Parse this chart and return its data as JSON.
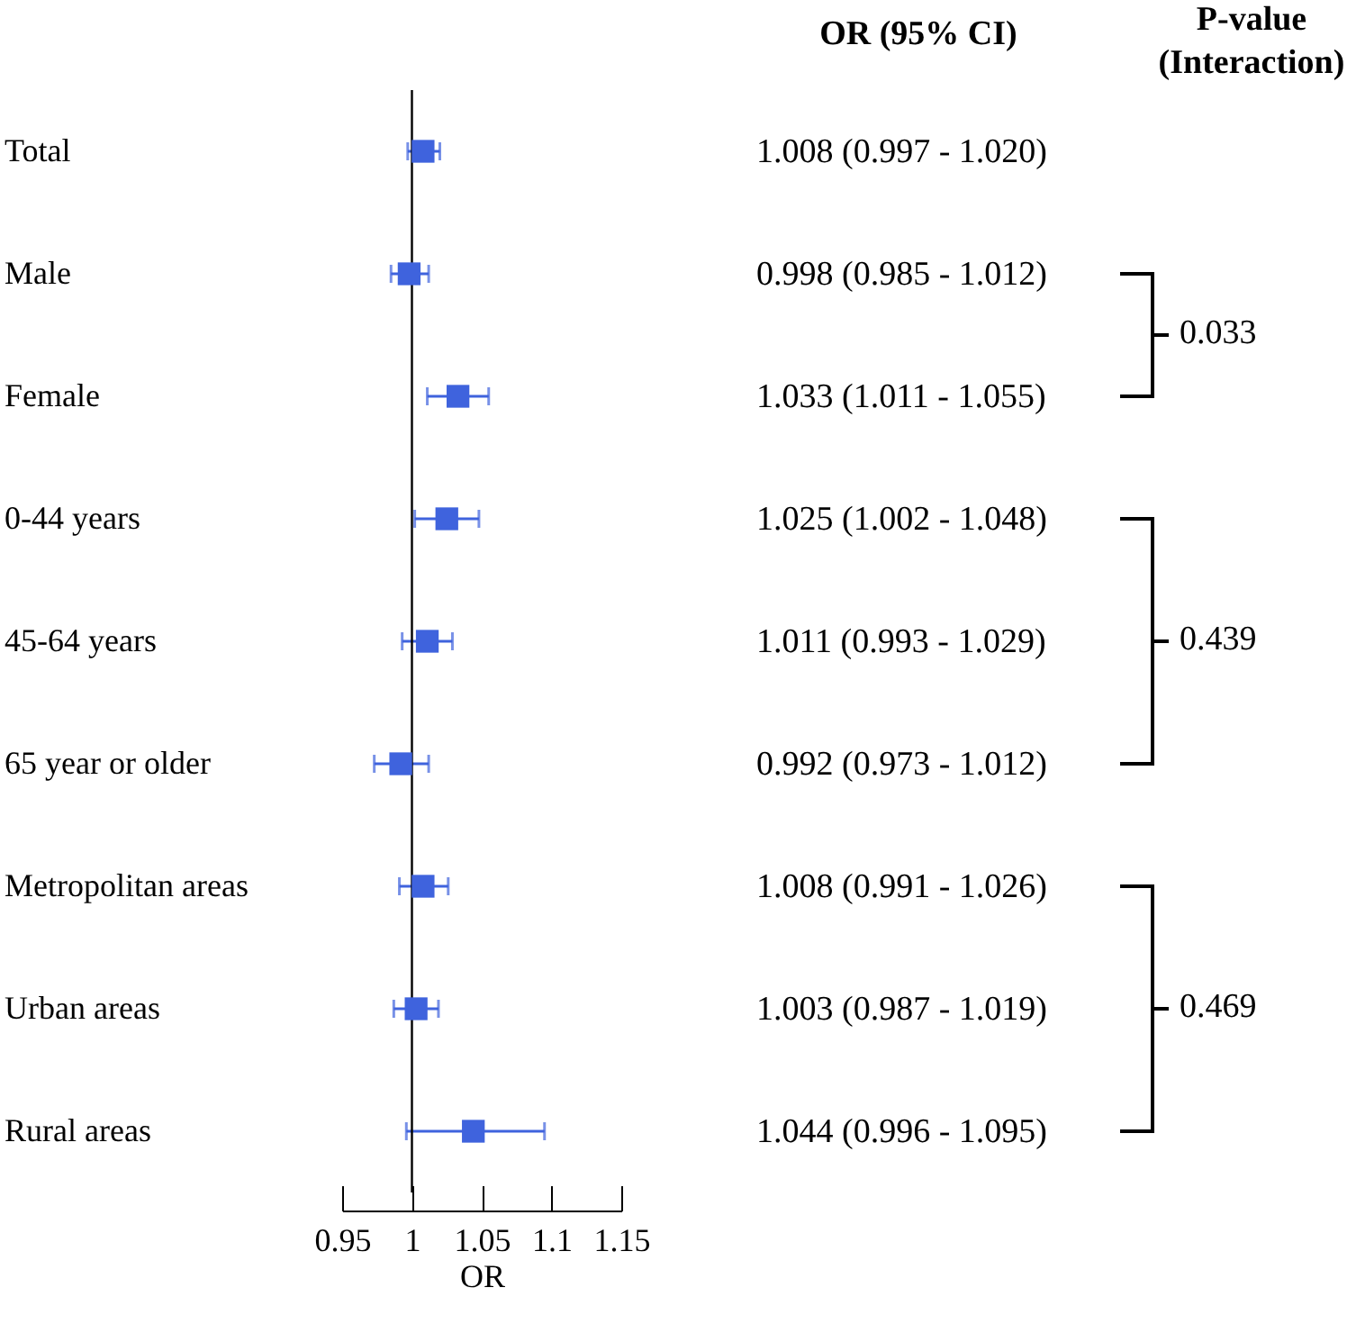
{
  "chart_data": {
    "type": "scatter",
    "orientation": "horizontal",
    "xlabel": "OR",
    "categories": [
      "Total",
      "Male",
      "Female",
      "0-44 years",
      "45-64 years",
      "65 year or older",
      "Metropolitan areas",
      "Urban areas",
      "Rural areas"
    ],
    "series": [
      {
        "color": "#3f63dd",
        "values": [
          1.008,
          0.998,
          1.033,
          1.025,
          1.011,
          0.992,
          1.008,
          1.003,
          1.044
        ],
        "errors": [
          [
            0.997,
            1.02
          ],
          [
            0.985,
            1.012
          ],
          [
            1.011,
            1.055
          ],
          [
            1.002,
            1.048
          ],
          [
            0.993,
            1.029
          ],
          [
            0.973,
            1.012
          ],
          [
            0.991,
            1.026
          ],
          [
            0.987,
            1.019
          ],
          [
            0.996,
            1.095
          ]
        ],
        "value_labels": [
          "1.008 (0.997 - 1.020)",
          "0.998 (0.985 - 1.012)",
          "1.033 (1.011 - 1.055)",
          "1.025 (1.002 - 1.048)",
          "1.011 (0.993 - 1.029)",
          "0.992 (0.973 - 1.012)",
          "1.008 (0.991 - 1.026)",
          "1.003 (0.987 - 1.019)",
          "1.044 (0.996 - 1.095)"
        ]
      }
    ],
    "marker": "square",
    "grid": false,
    "legend": false,
    "xlim": [
      0.95,
      1.15
    ],
    "xticks": [
      0.95,
      1,
      1.05,
      1.1,
      1.15
    ],
    "ref_lines": [
      {
        "axis": "x",
        "value": 1,
        "color": "#000000"
      }
    ],
    "annotations": [
      "OR (95% CI)",
      "P-value\n(Interaction)",
      "0.033",
      "0.439",
      "0.469"
    ]
  }
}
